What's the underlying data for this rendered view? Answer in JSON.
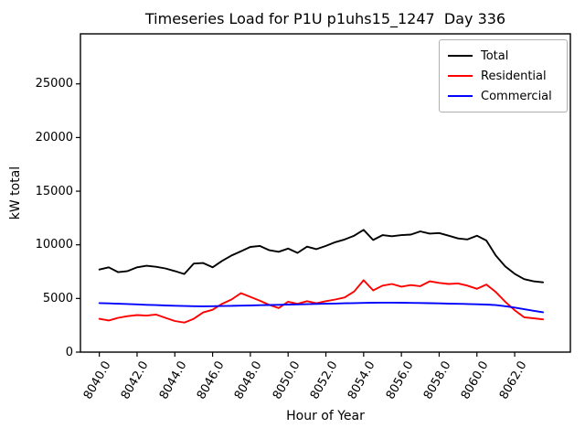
{
  "figure": {
    "background": "#ffffff",
    "frame_color": "#000000"
  },
  "chart_data": {
    "type": "line",
    "title": "Timeseries Load for P1U p1uhs15_1247  Day 336",
    "xlabel": "Hour of Year",
    "ylabel": "kW total",
    "grid": false,
    "legend_position": "upper right",
    "xlim": [
      8039.0,
      8064.95
    ],
    "ylim": [
      0,
      29665
    ],
    "x_ticks": [
      8040,
      8042,
      8044,
      8046,
      8048,
      8050,
      8052,
      8054,
      8056,
      8058,
      8060,
      8062
    ],
    "x_tick_labels": [
      "8040.0",
      "8042.0",
      "8044.0",
      "8046.0",
      "8048.0",
      "8050.0",
      "8052.0",
      "8054.0",
      "8056.0",
      "8058.0",
      "8060.0",
      "8062.0"
    ],
    "x_tick_rotation": 60,
    "y_ticks": [
      0,
      5000,
      10000,
      15000,
      20000,
      25000
    ],
    "y_tick_labels": [
      "0",
      "5000",
      "10000",
      "15000",
      "20000",
      "25000"
    ],
    "x": [
      8040.0,
      8040.5,
      8041.0,
      8041.5,
      8042.0,
      8042.5,
      8043.0,
      8043.5,
      8044.0,
      8044.5,
      8045.0,
      8045.5,
      8046.0,
      8046.5,
      8047.0,
      8047.5,
      8048.0,
      8048.5,
      8049.0,
      8049.5,
      8050.0,
      8050.5,
      8051.0,
      8051.5,
      8052.0,
      8052.5,
      8053.0,
      8053.5,
      8054.0,
      8054.5,
      8055.0,
      8055.5,
      8056.0,
      8056.5,
      8057.0,
      8057.5,
      8058.0,
      8058.5,
      8059.0,
      8059.5,
      8060.0,
      8060.5,
      8061.0,
      8061.5,
      8062.0,
      8062.5,
      8063.0,
      8063.5
    ],
    "series": [
      {
        "name": "Total",
        "color": "#000000",
        "values": [
          7700,
          7900,
          7450,
          7550,
          7900,
          8050,
          7950,
          7800,
          7550,
          7280,
          8250,
          8300,
          7900,
          8500,
          9000,
          9400,
          9800,
          9900,
          9500,
          9350,
          9650,
          9250,
          9830,
          9600,
          9900,
          10250,
          10500,
          10850,
          11400,
          10450,
          10900,
          10800,
          10900,
          10950,
          11250,
          11050,
          11100,
          10850,
          10600,
          10500,
          10850,
          10400,
          9000,
          8000,
          7300,
          6800,
          6600,
          6500
        ]
      },
      {
        "name": "Residential",
        "color": "#ff0000",
        "values": [
          3100,
          2950,
          3200,
          3350,
          3450,
          3400,
          3500,
          3200,
          2900,
          2750,
          3100,
          3700,
          3950,
          4500,
          4900,
          5500,
          5150,
          4800,
          4400,
          4100,
          4700,
          4500,
          4750,
          4550,
          4750,
          4900,
          5100,
          5650,
          6700,
          5750,
          6200,
          6350,
          6100,
          6250,
          6150,
          6600,
          6450,
          6350,
          6400,
          6200,
          5900,
          6300,
          5600,
          4700,
          3900,
          3250,
          3150,
          3050
        ]
      },
      {
        "name": "Commercial",
        "color": "#0000ff",
        "values": [
          4570,
          4540,
          4510,
          4480,
          4450,
          4410,
          4380,
          4350,
          4320,
          4300,
          4280,
          4270,
          4280,
          4300,
          4310,
          4330,
          4350,
          4370,
          4390,
          4410,
          4430,
          4450,
          4470,
          4490,
          4510,
          4530,
          4550,
          4570,
          4590,
          4600,
          4610,
          4610,
          4600,
          4590,
          4580,
          4560,
          4540,
          4520,
          4500,
          4480,
          4460,
          4430,
          4380,
          4280,
          4150,
          4000,
          3850,
          3720
        ]
      }
    ]
  }
}
